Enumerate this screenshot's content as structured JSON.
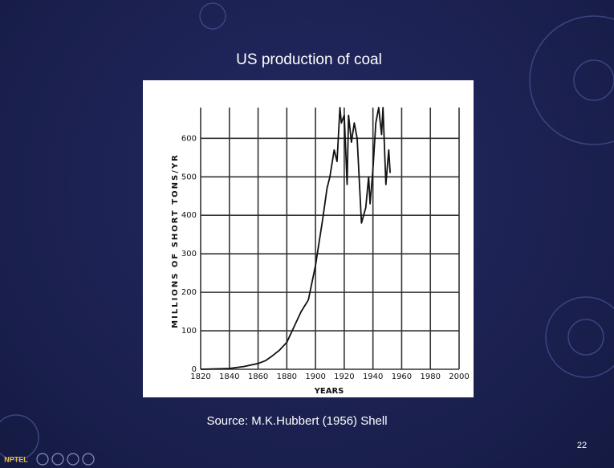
{
  "chart_data": {
    "type": "line",
    "title": "US production of coal",
    "x_label": "YEARS",
    "y_label": "MILLIONS OF SHORT TONS/YR",
    "xlim": [
      1820,
      2000
    ],
    "xticks": [
      1820,
      1840,
      1860,
      1880,
      1900,
      1920,
      1940,
      1960,
      1980,
      2000
    ],
    "ylim": [
      0,
      680
    ],
    "yticks": [
      0,
      100,
      200,
      300,
      400,
      500,
      600
    ],
    "grid": true,
    "color": "#111111",
    "x": [
      1820,
      1830,
      1840,
      1850,
      1860,
      1865,
      1870,
      1875,
      1880,
      1885,
      1890,
      1895,
      1900,
      1905,
      1908,
      1910,
      1913,
      1915,
      1917,
      1918,
      1920,
      1922,
      1923,
      1925,
      1927,
      1929,
      1932,
      1935,
      1937,
      1938,
      1940,
      1942,
      1944,
      1946,
      1947,
      1949,
      1951,
      1952
    ],
    "values": [
      0,
      1,
      2,
      7,
      15,
      22,
      35,
      50,
      70,
      110,
      150,
      180,
      270,
      390,
      470,
      500,
      570,
      540,
      680,
      640,
      660,
      480,
      660,
      590,
      640,
      600,
      380,
      420,
      500,
      430,
      520,
      640,
      680,
      610,
      680,
      480,
      570,
      510
    ]
  },
  "source": "Source: M.K.Hubbert (1956) Shell",
  "page_number": "22",
  "logo": "NPTEL"
}
